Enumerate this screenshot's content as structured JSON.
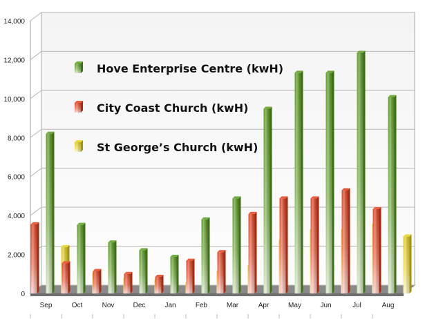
{
  "chart_data": {
    "type": "bar",
    "categories": [
      "Sep",
      "Oct",
      "Nov",
      "Dec",
      "Jan",
      "Feb",
      "Mar",
      "Apr",
      "May",
      "Jun",
      "Jul",
      "Aug"
    ],
    "series": [
      {
        "name": "City Coast Church (kwH)",
        "values": [
          3550,
          1550,
          1150,
          1000,
          850,
          1680,
          2120,
          4080,
          4880,
          4880,
          5300,
          4330
        ],
        "color": "#e8401c"
      },
      {
        "name": "Hove Enterprise Centre (kwH)",
        "values": [
          8200,
          3520,
          2620,
          2220,
          1880,
          3800,
          4880,
          9480,
          11330,
          11330,
          12350,
          10080
        ],
        "color": "#5a9e1f"
      },
      {
        "name": "St George’s Church (kwH)",
        "values": [
          2380,
          1050,
          800,
          700,
          580,
          1150,
          1450,
          2750,
          3280,
          3280,
          3580,
          2930
        ],
        "color": "#e8d21a"
      }
    ],
    "legend_order": [
      1,
      0,
      2
    ],
    "legend_position": "upper-left inside plot",
    "ylim": [
      0,
      14000
    ],
    "yticks": [
      0,
      2000,
      4000,
      6000,
      8000,
      10000,
      12000,
      14000
    ],
    "ytick_labels": [
      "0",
      "2,000",
      "4,000",
      "6,000",
      "8,000",
      "10,000",
      "12,000",
      "14,000"
    ],
    "grid": true,
    "title": "",
    "xlabel": "",
    "ylabel": ""
  }
}
